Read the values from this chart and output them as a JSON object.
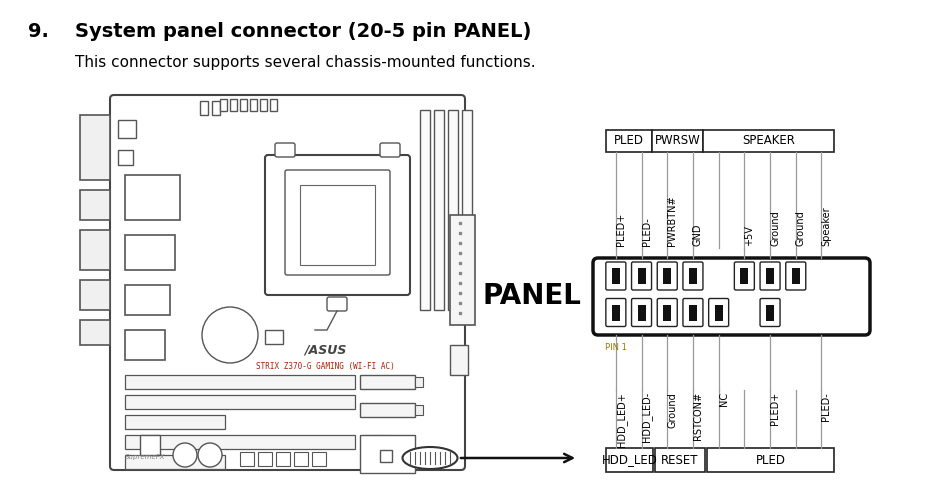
{
  "title_num": "9.",
  "title_text": "System panel connector (20-5 pin PANEL)",
  "subtitle": "This connector supports several chassis-mounted functions.",
  "bg_color": "#ffffff",
  "title_fontsize": 14,
  "subtitle_fontsize": 11,
  "top_group_labels": [
    "PLED",
    "PWRSW",
    "SPEAKER"
  ],
  "bottom_group_labels": [
    "HDD_LED",
    "RESET",
    "PLED"
  ],
  "top_pin_labels": [
    "PLED+",
    "PLED-",
    "PWRBTN#",
    "GND",
    "+5V",
    "Ground",
    "Ground",
    "Speaker"
  ],
  "top_pin_indices": [
    0,
    1,
    2,
    3,
    5,
    6,
    7,
    8
  ],
  "bottom_pin_labels": [
    "HDD_LED+",
    "HDD_LED-",
    "Ground",
    "RSTCON#",
    "NC",
    "PLED+",
    "PLED-"
  ],
  "bottom_pin_indices": [
    0,
    1,
    2,
    3,
    4,
    6,
    8
  ],
  "panel_text": "PANEL",
  "pin1_text": "PIN 1",
  "pin_color": "#000000",
  "box_color": "#111111",
  "line_color": "#888888",
  "text_color": "#000000",
  "asus_text": "/ASUS",
  "model_text": "STRIX Z370-G GAMING (WI-FI AC)"
}
